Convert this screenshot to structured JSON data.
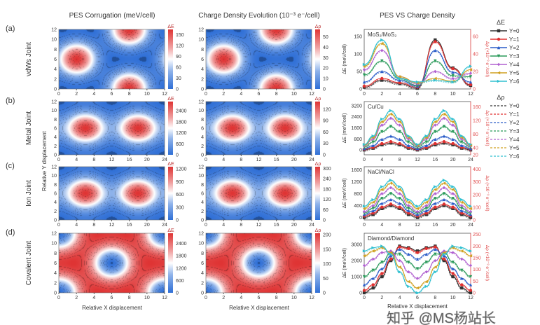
{
  "titles": {
    "pes": "PES Corrugation (meV/cell)",
    "charge": "Charge Density Evolution (10⁻³ e⁻/cell)",
    "compare": "PES VS Charge Density"
  },
  "rows": [
    {
      "tag": "(a)",
      "name": "vdWs Joint"
    },
    {
      "tag": "(b)",
      "name": "Metal Joint"
    },
    {
      "tag": "(c)",
      "name": "Ion Joint"
    },
    {
      "tag": "(d)",
      "name": "Covalent Joint"
    }
  ],
  "axis_labels": {
    "x": "Relative X displacement",
    "y": "Relative Y displacement",
    "de": "ΔE (meV/cell)",
    "dr": "Δρ (×10⁻³ e⁻/cell)"
  },
  "legend": {
    "de_title": "ΔE",
    "dr_title": "Δρ",
    "items": [
      {
        "name": "Y=0",
        "color": "#333333",
        "marker": "square"
      },
      {
        "name": "Y=1",
        "color": "#e03030",
        "marker": "circle"
      },
      {
        "name": "Y=2",
        "color": "#2a5cc8",
        "marker": "triangle-up"
      },
      {
        "name": "Y=3",
        "color": "#2a9a5a",
        "marker": "triangle-down"
      },
      {
        "name": "Y=4",
        "color": "#b060d0",
        "marker": "diamond"
      },
      {
        "name": "Y=5",
        "color": "#d0a020",
        "marker": "triangle-left"
      },
      {
        "name": "Y=6",
        "color": "#30c0d0",
        "marker": "triangle-right"
      }
    ]
  },
  "watermark": "知乎 @MS杨站长",
  "chart_data": [
    {
      "type": "heatmap",
      "row": "(a)",
      "quantity": "ΔE",
      "xlim": [
        0,
        12
      ],
      "ylim": [
        0,
        12
      ],
      "xticks": [
        0,
        2,
        4,
        6,
        8,
        10,
        12
      ],
      "yticks": [
        0,
        2,
        4,
        6,
        8,
        10,
        12
      ],
      "colorbar_ticks": [
        0,
        30,
        60,
        90,
        120,
        150
      ],
      "colorbar_max": 165,
      "extrema": "maxima",
      "centers": [
        [
          2,
          6
        ],
        [
          8,
          0
        ]
      ]
    },
    {
      "type": "heatmap",
      "row": "(a)",
      "quantity": "Δρ",
      "xlim": [
        0,
        12
      ],
      "ylim": [
        0,
        12
      ],
      "xticks": [
        0,
        2,
        4,
        6,
        8,
        10,
        12
      ],
      "yticks": [
        0,
        2,
        4,
        6,
        8,
        10,
        12
      ],
      "colorbar_ticks": [
        0,
        10,
        20,
        30,
        40,
        50
      ],
      "colorbar_max": 57,
      "extrema": "maxima",
      "centers": [
        [
          2,
          6
        ],
        [
          8,
          0
        ]
      ]
    },
    {
      "type": "heatmap",
      "row": "(b)",
      "quantity": "ΔE",
      "xlim": [
        0,
        24
      ],
      "ylim": [
        0,
        12
      ],
      "xticks": [
        0,
        4,
        8,
        12,
        16,
        20,
        24
      ],
      "yticks": [
        0,
        2,
        4,
        6,
        8,
        10,
        12
      ],
      "colorbar_ticks": [
        0,
        600,
        1200,
        1800,
        2400
      ],
      "colorbar_max": 2900,
      "extrema": "maxima",
      "centers": [
        [
          6,
          6
        ],
        [
          18,
          6
        ]
      ]
    },
    {
      "type": "heatmap",
      "row": "(b)",
      "quantity": "Δρ",
      "xlim": [
        0,
        24
      ],
      "ylim": [
        0,
        12
      ],
      "xticks": [
        0,
        4,
        8,
        12,
        16,
        20,
        24
      ],
      "yticks": [
        0,
        2,
        4,
        6,
        8,
        10,
        12
      ],
      "colorbar_ticks": [
        0,
        30,
        60,
        90,
        120
      ],
      "colorbar_max": 140,
      "extrema": "maxima",
      "centers": [
        [
          6,
          6
        ],
        [
          18,
          6
        ]
      ]
    },
    {
      "type": "heatmap",
      "row": "(c)",
      "quantity": "ΔE",
      "xlim": [
        0,
        24
      ],
      "ylim": [
        0,
        12
      ],
      "xticks": [
        0,
        4,
        8,
        12,
        16,
        20,
        24
      ],
      "yticks": [
        0,
        2,
        4,
        6,
        8,
        10,
        12
      ],
      "colorbar_ticks": [
        0,
        300,
        600,
        900,
        1200
      ],
      "colorbar_max": 1250,
      "extrema": "maxima",
      "centers": [
        [
          6,
          6
        ],
        [
          18,
          6
        ]
      ]
    },
    {
      "type": "heatmap",
      "row": "(c)",
      "quantity": "Δρ",
      "xlim": [
        0,
        24
      ],
      "ylim": [
        0,
        12
      ],
      "xticks": [
        0,
        4,
        8,
        12,
        16,
        20,
        24
      ],
      "yticks": [
        0,
        2,
        4,
        6,
        8,
        10,
        12
      ],
      "colorbar_ticks": [
        0,
        60,
        120,
        180,
        240,
        300
      ],
      "colorbar_max": 310,
      "extrema": "maxima",
      "centers": [
        [
          6,
          6
        ],
        [
          18,
          6
        ]
      ]
    },
    {
      "type": "heatmap",
      "row": "(d)",
      "quantity": "ΔE",
      "xlim": [
        0,
        12
      ],
      "ylim": [
        0,
        12
      ],
      "xticks": [
        0,
        2,
        4,
        6,
        8,
        10,
        12
      ],
      "yticks": [
        0,
        2,
        4,
        6,
        8,
        10,
        12
      ],
      "colorbar_ticks": [
        0,
        600,
        1200,
        1800,
        2400
      ],
      "colorbar_max": 2900,
      "extrema": "minima",
      "centers": [
        [
          6,
          6
        ],
        [
          0,
          0
        ]
      ]
    },
    {
      "type": "heatmap",
      "row": "(d)",
      "quantity": "Δρ",
      "xlim": [
        0,
        12
      ],
      "ylim": [
        0,
        12
      ],
      "xticks": [
        0,
        2,
        4,
        6,
        8,
        10,
        12
      ],
      "yticks": [
        0,
        2,
        4,
        6,
        8,
        10,
        12
      ],
      "colorbar_ticks": [
        0,
        50,
        100,
        150,
        200
      ],
      "colorbar_max": 205,
      "extrema": "minima",
      "centers": [
        [
          6,
          6
        ],
        [
          0,
          0
        ]
      ]
    },
    {
      "type": "line",
      "label": "MoS₂/MoS₂",
      "x": [
        0,
        2,
        4,
        6,
        8,
        10,
        12
      ],
      "xticks": [
        0,
        2,
        4,
        6,
        8,
        10,
        12
      ],
      "ylim": [
        0,
        170
      ],
      "yticks": [
        0,
        50,
        100,
        150
      ],
      "ylim_right": [
        0,
        68
      ],
      "yticks_right": [
        0,
        20,
        40,
        60
      ],
      "series": [
        {
          "name": "Y=0",
          "values": [
            5,
            25,
            15,
            2,
            140,
            60,
            10
          ]
        },
        {
          "name": "Y=1",
          "values": [
            8,
            30,
            18,
            5,
            135,
            58,
            12
          ]
        },
        {
          "name": "Y=2",
          "values": [
            20,
            50,
            25,
            8,
            110,
            48,
            20
          ]
        },
        {
          "name": "Y=3",
          "values": [
            40,
            80,
            30,
            10,
            80,
            38,
            35
          ]
        },
        {
          "name": "Y=4",
          "values": [
            55,
            110,
            35,
            15,
            50,
            30,
            45
          ]
        },
        {
          "name": "Y=5",
          "values": [
            65,
            130,
            35,
            18,
            30,
            22,
            55
          ]
        },
        {
          "name": "Y=6",
          "values": [
            70,
            140,
            30,
            20,
            25,
            20,
            65
          ]
        }
      ]
    },
    {
      "type": "line",
      "label": "Cu/Cu",
      "x": [
        0,
        2,
        4,
        6,
        8,
        10,
        12,
        14,
        16,
        18,
        20,
        22,
        24
      ],
      "xticks": [
        0,
        4,
        8,
        12,
        16,
        20,
        24
      ],
      "ylim": [
        -350,
        3500
      ],
      "yticks": [
        0,
        800,
        1600,
        2400,
        3200
      ],
      "ylim_right": [
        20,
        175
      ],
      "yticks_right": [
        20,
        40,
        80,
        120,
        160
      ],
      "series": [
        {
          "name": "Y=0",
          "values": [
            0,
            125,
            375,
            500,
            375,
            125,
            0,
            125,
            375,
            500,
            375,
            125,
            0
          ]
        },
        {
          "name": "Y=1",
          "values": [
            50,
            188,
            463,
            600,
            463,
            188,
            50,
            188,
            463,
            600,
            463,
            188,
            50
          ]
        },
        {
          "name": "Y=2",
          "values": [
            100,
            325,
            775,
            1000,
            775,
            325,
            100,
            325,
            775,
            1000,
            775,
            325,
            100
          ]
        },
        {
          "name": "Y=3",
          "values": [
            200,
            575,
            1325,
            1700,
            1325,
            575,
            200,
            575,
            1325,
            1700,
            1325,
            575,
            200
          ]
        },
        {
          "name": "Y=4",
          "values": [
            300,
            800,
            1800,
            2300,
            1800,
            800,
            300,
            800,
            1800,
            2300,
            1800,
            800,
            300
          ]
        },
        {
          "name": "Y=5",
          "values": [
            350,
            913,
            2038,
            2600,
            2038,
            913,
            350,
            913,
            2038,
            2600,
            2038,
            913,
            350
          ]
        },
        {
          "name": "Y=6",
          "values": [
            400,
            1013,
            2238,
            2850,
            2238,
            1013,
            400,
            1013,
            2238,
            2850,
            2238,
            1013,
            400
          ]
        }
      ]
    },
    {
      "type": "line",
      "label": "NaCl/NaCl",
      "x": [
        0,
        2,
        4,
        6,
        8,
        10,
        12,
        14,
        16,
        18,
        20,
        22,
        24
      ],
      "xticks": [
        0,
        4,
        8,
        12,
        16,
        20,
        24
      ],
      "ylim": [
        -80,
        1700
      ],
      "yticks": [
        0,
        400,
        800,
        1200,
        1600
      ],
      "ylim_right": [
        0,
        420
      ],
      "yticks_right": [
        0,
        100,
        200,
        300,
        400
      ],
      "series": [
        {
          "name": "Y=0",
          "values": [
            0,
            100,
            300,
            400,
            300,
            100,
            0,
            100,
            300,
            400,
            300,
            100,
            0
          ]
        },
        {
          "name": "Y=1",
          "values": [
            50,
            150,
            350,
            450,
            350,
            150,
            50,
            150,
            350,
            450,
            350,
            150,
            50
          ]
        },
        {
          "name": "Y=2",
          "values": [
            100,
            225,
            475,
            600,
            475,
            225,
            100,
            225,
            475,
            600,
            475,
            225,
            100
          ]
        },
        {
          "name": "Y=3",
          "values": [
            150,
            313,
            638,
            800,
            638,
            313,
            150,
            313,
            638,
            800,
            638,
            313,
            150
          ]
        },
        {
          "name": "Y=4",
          "values": [
            200,
            400,
            800,
            1000,
            800,
            400,
            200,
            400,
            800,
            1000,
            800,
            400,
            200
          ]
        },
        {
          "name": "Y=5",
          "values": [
            300,
            513,
            938,
            1150,
            938,
            513,
            300,
            513,
            938,
            1150,
            938,
            513,
            300
          ]
        },
        {
          "name": "Y=6",
          "values": [
            380,
            598,
            1033,
            1250,
            1033,
            598,
            380,
            598,
            1033,
            1250,
            1033,
            598,
            380
          ]
        }
      ]
    },
    {
      "type": "line",
      "label": "Diamond/Diamond",
      "x": [
        0,
        1,
        2,
        3,
        4,
        5,
        6,
        7,
        8,
        9,
        10,
        11,
        12
      ],
      "xticks": [
        0,
        2,
        4,
        6,
        8,
        10,
        12
      ],
      "ylim": [
        0,
        3700
      ],
      "yticks": [
        0,
        1000,
        2000,
        3000
      ],
      "ylim_right": [
        0,
        255
      ],
      "yticks_right": [
        0,
        50,
        100,
        150,
        200,
        250
      ],
      "series": [
        {
          "name": "Y=0",
          "values": [
            0,
            300,
            1000,
            2000,
            2900,
            2800,
            2600,
            2800,
            2900,
            2000,
            1000,
            300,
            0
          ]
        },
        {
          "name": "Y=1",
          "values": [
            150,
            500,
            1200,
            2100,
            2850,
            2750,
            2500,
            2750,
            2850,
            2100,
            1200,
            500,
            150
          ]
        },
        {
          "name": "Y=2",
          "values": [
            500,
            900,
            1500,
            2300,
            2700,
            2400,
            2100,
            2400,
            2700,
            2300,
            1500,
            900,
            500
          ]
        },
        {
          "name": "Y=3",
          "values": [
            1000,
            1400,
            1900,
            2500,
            2400,
            1900,
            1500,
            1900,
            2400,
            2500,
            1900,
            1400,
            1000
          ]
        },
        {
          "name": "Y=4",
          "values": [
            1700,
            2100,
            2500,
            2600,
            2000,
            1300,
            900,
            1300,
            2000,
            2600,
            2500,
            2100,
            1700
          ]
        },
        {
          "name": "Y=5",
          "values": [
            2300,
            2600,
            2800,
            2500,
            1600,
            700,
            300,
            700,
            1600,
            2500,
            2800,
            2600,
            2300
          ]
        },
        {
          "name": "Y=6",
          "values": [
            2600,
            2800,
            2900,
            2400,
            1300,
            400,
            0,
            400,
            1300,
            2400,
            2900,
            2800,
            2600
          ]
        }
      ]
    }
  ]
}
